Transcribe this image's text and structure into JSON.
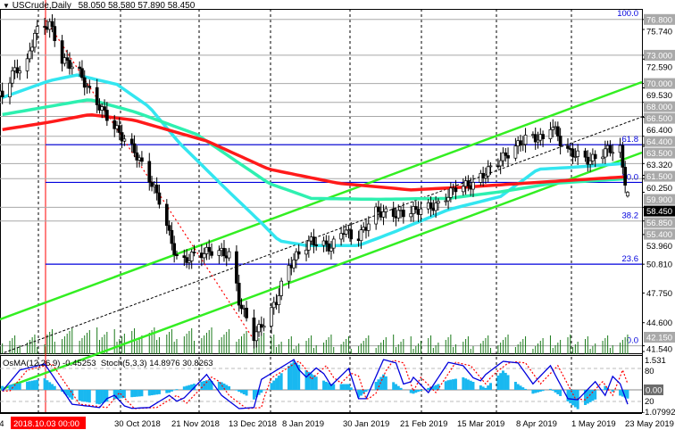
{
  "header": {
    "symbol": "USCrude,Daily",
    "ohlc": "58.050 58.580 57.890 58.450"
  },
  "indicator_header": "OsMA(12,26,9) -0.45253  Stoch(5,3,3) 14.8976 30.8263",
  "colors": {
    "candle": "#000000",
    "ma_fast": "#33e6f0",
    "ma_mid": "#2ef0b0",
    "ma_slow": "#ff1a1a",
    "channel": "#33ee22",
    "fib_line": "#0000dd",
    "level_line": "#a8a8a8",
    "volume": "#1a7a1a",
    "osma": "#19b8f0",
    "stoch_main": "#0000dd",
    "stoch_signal": "#ff0000",
    "crosshair": "#ff0000"
  },
  "price_axis": {
    "ticks": [
      "75.740",
      "72.590",
      "69.530",
      "66.400",
      "63.320",
      "60.250",
      "53.960",
      "50.810",
      "47.750",
      "44.600",
      "41.540"
    ],
    "levels": [
      "76.800",
      "73.000",
      "70.000",
      "68.000",
      "66.500",
      "64.400",
      "63.500",
      "61.500",
      "59.900",
      "56.850",
      "55.400",
      "42.150"
    ],
    "current": "58.450"
  },
  "fibonacci": [
    {
      "label": "100.0",
      "price": 76.8
    },
    {
      "label": "61.8",
      "price": 63.5
    },
    {
      "label": "50.0",
      "price": 59.5
    },
    {
      "label": "38.2",
      "price": 55.4
    },
    {
      "label": "23.6",
      "price": 50.81
    },
    {
      "label": "0.0",
      "price": 42.15
    }
  ],
  "indicator_axis": {
    "osma_max": "1.531",
    "stoch_80": "80",
    "zero": "0.00",
    "stoch_20": "20",
    "osma_min": "-1.07992"
  },
  "time_axis": {
    "labels": [
      "14",
      "2018.10.03 00:00",
      "30 Oct 2018",
      "21 Nov 2018",
      "13 Dec 2018",
      "8 Jan 2019",
      "30 Jan 2019",
      "21 Feb 2019",
      "15 Mar 2019",
      "8 Apr 2019",
      "1 May 2019",
      "23 May 2019"
    ]
  },
  "chart_data": {
    "type": "candlestick",
    "symbol": "USCrude",
    "timeframe": "Daily",
    "ylim": [
      41.0,
      77.5
    ],
    "dates": [
      "2018-09-14",
      "2018-09-18",
      "2018-09-24",
      "2018-09-27",
      "2018-10-03",
      "2018-10-08",
      "2018-10-14",
      "2018-10-19",
      "2018-10-24",
      "2018-10-31",
      "2018-11-06",
      "2018-11-12",
      "2018-11-17",
      "2018-11-20",
      "2018-11-24",
      "2018-11-29",
      "2018-12-08",
      "2018-12-15",
      "2018-12-18",
      "2018-12-24",
      "2018-12-30",
      "2019-01-02",
      "2019-01-06",
      "2019-01-11",
      "2019-01-16",
      "2019-01-24",
      "2019-01-29",
      "2019-02-03",
      "2019-02-11",
      "2019-02-18",
      "2019-02-25",
      "2019-03-08",
      "2019-03-15",
      "2019-03-22",
      "2019-03-31",
      "2019-04-07",
      "2019-04-13",
      "2019-04-20",
      "2019-04-22",
      "2019-04-25",
      "2019-04-27",
      "2019-05-02",
      "2019-05-08",
      "2019-05-15",
      "2019-05-20",
      "2019-05-21",
      "2019-05-23"
    ],
    "close": [
      68.7,
      71.1,
      72.2,
      75.4,
      76.4,
      72.5,
      71.6,
      69.1,
      67.2,
      64.7,
      62.8,
      59.9,
      57.1,
      53.9,
      50.7,
      51.7,
      52.3,
      51.7,
      46.9,
      43.2,
      45.4,
      46.9,
      50.2,
      52.0,
      53.3,
      52.6,
      54.5,
      53.3,
      56.4,
      56.1,
      56.4,
      57.1,
      59.0,
      59.3,
      61.5,
      63.0,
      64.4,
      64.0,
      65.6,
      64.6,
      63.0,
      62.5,
      61.8,
      63.0,
      63.0,
      60.9,
      58.45
    ],
    "last_bar": {
      "open": 58.05,
      "high": 58.58,
      "low": 57.89,
      "close": 58.45
    },
    "moving_averages": [
      {
        "role": "fast",
        "dates": [
          "2018-09-14",
          "2018-10-03",
          "2018-10-14",
          "2018-10-30",
          "2018-11-12",
          "2018-11-24",
          "2018-12-12",
          "2018-12-27",
          "2019-01-03",
          "2019-01-14",
          "2019-02-04",
          "2019-02-18",
          "2019-03-12",
          "2019-04-02",
          "2019-04-17",
          "2019-05-01",
          "2019-05-21",
          "2019-05-23"
        ],
        "values": [
          68.5,
          70.3,
          70.9,
          69.9,
          67.5,
          63.7,
          59.0,
          55.2,
          53.3,
          52.8,
          52.8,
          54.2,
          56.6,
          58.0,
          60.9,
          61.1,
          61.5,
          61.2
        ]
      },
      {
        "role": "mid",
        "dates": [
          "2018-09-14",
          "2018-10-19",
          "2018-11-06",
          "2018-12-01",
          "2018-12-30",
          "2019-01-16",
          "2019-02-11",
          "2019-03-12",
          "2019-04-02",
          "2019-04-23",
          "2019-05-23"
        ],
        "values": [
          66.7,
          68.3,
          67.0,
          64.6,
          59.4,
          57.8,
          57.7,
          57.8,
          58.5,
          59.4,
          59.9
        ]
      },
      {
        "role": "slow",
        "dates": [
          "2018-09-14",
          "2018-10-03",
          "2018-10-19",
          "2018-11-06",
          "2018-12-05",
          "2018-12-30",
          "2019-01-27",
          "2019-02-25",
          "2019-03-19",
          "2019-04-17",
          "2019-05-23"
        ],
        "values": [
          65.1,
          65.9,
          66.7,
          66.1,
          63.9,
          60.9,
          59.4,
          58.7,
          59.0,
          59.5,
          60.1
        ]
      }
    ],
    "channel": {
      "upper": [
        {
          "date": "2018-09-14",
          "price": 70.0
        },
        {
          "date": "2019-05-23",
          "price": 71.0
        }
      ],
      "note_lines": [
        "upper",
        "middle",
        "lower"
      ]
    },
    "oscillators": {
      "dates": [
        "2018-09-14",
        "2018-09-21",
        "2018-10-01",
        "2018-10-12",
        "2018-10-23",
        "2018-10-28",
        "2018-11-03",
        "2018-11-12",
        "2018-11-20",
        "2018-11-24",
        "2018-12-05",
        "2018-12-11",
        "2018-12-18",
        "2018-12-24",
        "2018-12-27",
        "2019-01-09",
        "2019-01-13",
        "2019-01-19",
        "2019-01-24",
        "2019-01-31",
        "2019-02-04",
        "2019-02-07",
        "2019-02-14",
        "2019-02-19",
        "2019-02-23",
        "2019-02-26",
        "2019-03-04",
        "2019-03-12",
        "2019-03-18",
        "2019-03-24",
        "2019-03-27",
        "2019-04-03",
        "2019-04-09",
        "2019-04-15",
        "2019-04-22",
        "2019-04-29",
        "2019-05-03",
        "2019-05-10",
        "2019-05-14",
        "2019-05-18",
        "2019-05-23"
      ],
      "stoch_main": [
        39,
        77,
        88,
        15,
        9,
        36,
        7,
        9,
        31,
        17,
        69,
        31,
        7,
        9,
        60,
        96,
        60,
        85,
        49,
        80,
        25,
        25,
        96,
        90,
        39,
        64,
        36,
        91,
        85,
        52,
        69,
        93,
        90,
        52,
        85,
        25,
        23,
        56,
        31,
        77,
        14.9
      ],
      "osma": [
        0.2,
        0.35,
        0.6,
        -0.5,
        -0.75,
        -0.5,
        -0.4,
        -0.3,
        -0.15,
        0.1,
        0.5,
        0.4,
        -0.1,
        -0.5,
        -0.15,
        1.5,
        1.1,
        0.6,
        0.3,
        0.3,
        -0.4,
        -0.1,
        0.8,
        0.3,
        -0.1,
        -0.2,
        0.1,
        0.5,
        0.65,
        0.3,
        0.1,
        1.0,
        0.3,
        -0.2,
        0.05,
        -0.6,
        -1.0,
        -0.5,
        0.2,
        -0.2,
        -0.45
      ],
      "stoch_levels": [
        20,
        80
      ]
    }
  }
}
